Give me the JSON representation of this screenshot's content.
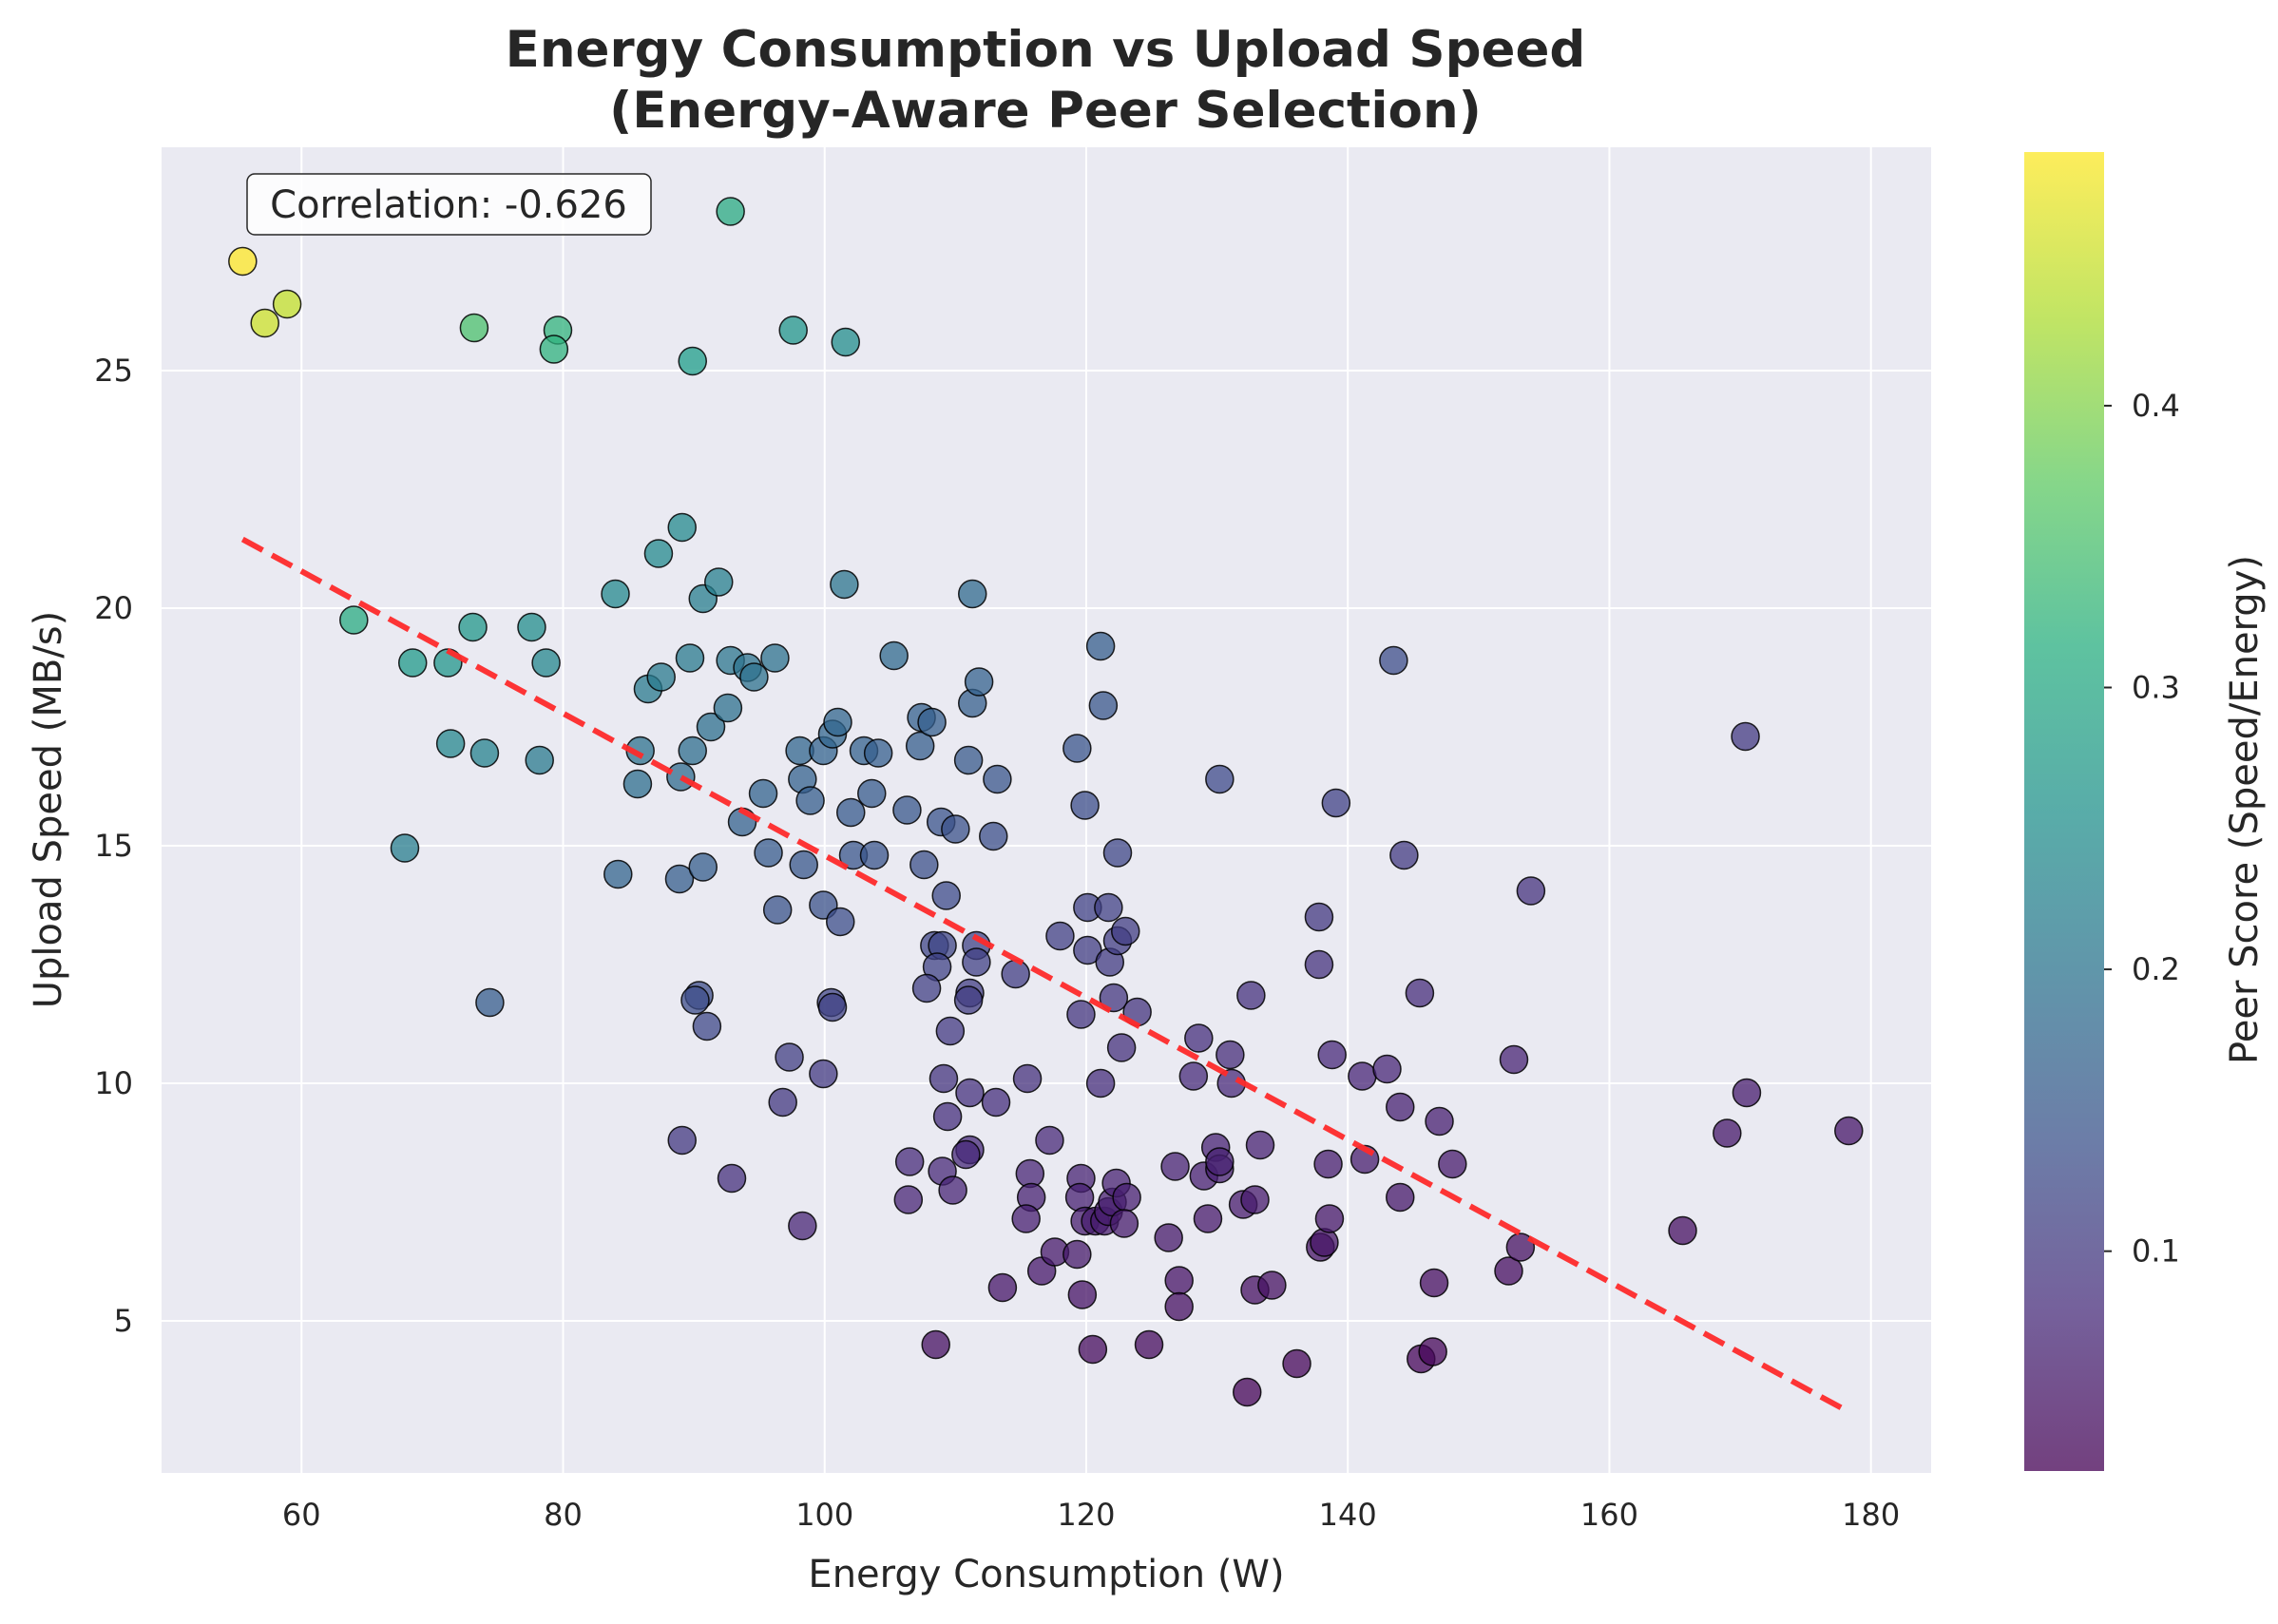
{
  "chart_data": {
    "type": "scatter",
    "title": [
      "Energy Consumption vs Upload Speed",
      "(Energy-Aware Peer Selection)"
    ],
    "xlabel": "Energy Consumption (W)",
    "ylabel": "Upload Speed (MB/s)",
    "xlim": [
      49.3,
      184.6
    ],
    "ylim": [
      1.8,
      29.7
    ],
    "xticks": [
      60,
      80,
      100,
      120,
      140,
      160,
      180
    ],
    "yticks": [
      5,
      10,
      15,
      20,
      25
    ],
    "grid": true,
    "colorbar": {
      "label": "Peer Score (Speed/Energy)",
      "range": [
        0.022,
        0.49
      ],
      "ticks": [
        0.1,
        0.2,
        0.3,
        0.4
      ],
      "tick_labels": [
        "0.1",
        "0.2",
        "0.3",
        "0.4"
      ],
      "colormap": "viridis"
    },
    "annotation": "Correlation: -0.626",
    "trend_line": {
      "x": [
        55.5,
        178.2
      ],
      "y": [
        21.45,
        3.1
      ],
      "color": "#ff2b2b",
      "style": "dashed"
    },
    "points": [
      [
        55.5,
        27.3
      ],
      [
        57.2,
        26.0
      ],
      [
        58.9,
        26.4
      ],
      [
        73.2,
        25.9
      ],
      [
        79.6,
        25.85
      ],
      [
        79.3,
        25.45
      ],
      [
        92.8,
        28.35
      ],
      [
        89.9,
        25.2
      ],
      [
        97.6,
        25.85
      ],
      [
        101.6,
        25.6
      ],
      [
        64.0,
        19.75
      ],
      [
        68.5,
        18.85
      ],
      [
        71.2,
        18.85
      ],
      [
        73.1,
        19.6
      ],
      [
        77.6,
        19.6
      ],
      [
        78.7,
        18.85
      ],
      [
        71.4,
        17.15
      ],
      [
        74.0,
        16.95
      ],
      [
        78.2,
        16.8
      ],
      [
        67.9,
        14.95
      ],
      [
        74.4,
        11.7
      ],
      [
        84.0,
        20.3
      ],
      [
        87.3,
        21.15
      ],
      [
        89.1,
        21.7
      ],
      [
        90.7,
        20.2
      ],
      [
        91.9,
        20.55
      ],
      [
        89.7,
        18.95
      ],
      [
        86.5,
        18.3
      ],
      [
        87.5,
        18.55
      ],
      [
        85.9,
        17.0
      ],
      [
        85.7,
        16.3
      ],
      [
        89.0,
        16.45
      ],
      [
        89.9,
        17.0
      ],
      [
        91.3,
        17.5
      ],
      [
        92.6,
        17.9
      ],
      [
        92.8,
        18.9
      ],
      [
        94.1,
        18.75
      ],
      [
        94.6,
        18.55
      ],
      [
        96.2,
        18.95
      ],
      [
        93.7,
        15.5
      ],
      [
        95.3,
        16.1
      ],
      [
        95.7,
        14.85
      ],
      [
        96.4,
        13.65
      ],
      [
        98.1,
        17.0
      ],
      [
        98.3,
        16.4
      ],
      [
        98.9,
        15.95
      ],
      [
        98.4,
        14.6
      ],
      [
        99.9,
        17.0
      ],
      [
        100.6,
        17.35
      ],
      [
        101.0,
        17.6
      ],
      [
        99.9,
        13.75
      ],
      [
        101.2,
        13.4
      ],
      [
        102.0,
        15.7
      ],
      [
        102.2,
        14.8
      ],
      [
        103.0,
        17.0
      ],
      [
        103.6,
        16.1
      ],
      [
        103.8,
        14.8
      ],
      [
        104.1,
        16.95
      ],
      [
        101.5,
        20.5
      ],
      [
        84.2,
        14.4
      ],
      [
        88.9,
        14.3
      ],
      [
        90.7,
        14.55
      ],
      [
        90.4,
        11.85
      ],
      [
        90.1,
        11.75
      ],
      [
        91.0,
        11.2
      ],
      [
        97.3,
        10.55
      ],
      [
        96.8,
        9.6
      ],
      [
        99.9,
        10.2
      ],
      [
        100.5,
        11.7
      ],
      [
        100.6,
        11.6
      ],
      [
        89.1,
        8.8
      ],
      [
        92.9,
        8.0
      ],
      [
        98.3,
        7.0
      ],
      [
        105.3,
        19.0
      ],
      [
        106.3,
        15.75
      ],
      [
        107.3,
        17.1
      ],
      [
        107.4,
        17.7
      ],
      [
        108.2,
        17.6
      ],
      [
        107.6,
        14.6
      ],
      [
        108.9,
        15.5
      ],
      [
        109.3,
        13.95
      ],
      [
        110.0,
        15.35
      ],
      [
        111.0,
        16.8
      ],
      [
        111.3,
        18.0
      ],
      [
        111.8,
        18.45
      ],
      [
        111.3,
        20.3
      ],
      [
        113.2,
        16.4
      ],
      [
        112.9,
        15.2
      ],
      [
        108.4,
        12.9
      ],
      [
        109.0,
        12.9
      ],
      [
        108.6,
        12.45
      ],
      [
        107.8,
        12.0
      ],
      [
        111.6,
        12.9
      ],
      [
        111.6,
        12.55
      ],
      [
        111.1,
        11.9
      ],
      [
        111.0,
        11.75
      ],
      [
        109.6,
        11.1
      ],
      [
        109.1,
        10.1
      ],
      [
        111.1,
        9.8
      ],
      [
        109.4,
        9.3
      ],
      [
        111.1,
        8.6
      ],
      [
        110.8,
        8.5
      ],
      [
        109.0,
        8.15
      ],
      [
        109.8,
        7.75
      ],
      [
        106.5,
        8.35
      ],
      [
        106.4,
        7.55
      ],
      [
        113.1,
        9.6
      ],
      [
        114.6,
        12.3
      ],
      [
        115.5,
        10.1
      ],
      [
        115.7,
        8.1
      ],
      [
        115.8,
        7.6
      ],
      [
        115.4,
        7.15
      ],
      [
        117.2,
        8.8
      ],
      [
        116.6,
        6.05
      ],
      [
        117.6,
        6.45
      ],
      [
        119.3,
        6.4
      ],
      [
        108.5,
        4.5
      ],
      [
        113.6,
        5.7
      ],
      [
        118.0,
        13.1
      ],
      [
        119.3,
        17.05
      ],
      [
        119.9,
        15.85
      ],
      [
        120.1,
        13.7
      ],
      [
        120.1,
        12.8
      ],
      [
        119.6,
        11.45
      ],
      [
        121.1,
        19.2
      ],
      [
        121.3,
        17.95
      ],
      [
        121.7,
        13.7
      ],
      [
        121.8,
        12.55
      ],
      [
        122.1,
        11.8
      ],
      [
        122.4,
        13.0
      ],
      [
        122.4,
        14.85
      ],
      [
        123.0,
        13.2
      ],
      [
        122.7,
        10.75
      ],
      [
        123.9,
        11.5
      ],
      [
        121.1,
        10.0
      ],
      [
        119.6,
        8.0
      ],
      [
        119.5,
        7.6
      ],
      [
        119.9,
        7.1
      ],
      [
        120.7,
        7.1
      ],
      [
        121.4,
        7.1
      ],
      [
        121.7,
        7.3
      ],
      [
        122.0,
        7.5
      ],
      [
        122.3,
        7.9
      ],
      [
        123.1,
        7.6
      ],
      [
        122.9,
        7.05
      ],
      [
        119.7,
        5.55
      ],
      [
        120.5,
        4.4
      ],
      [
        124.8,
        4.5
      ],
      [
        126.3,
        6.75
      ],
      [
        126.8,
        8.25
      ],
      [
        127.1,
        5.85
      ],
      [
        127.1,
        5.3
      ],
      [
        128.6,
        10.95
      ],
      [
        128.2,
        10.15
      ],
      [
        129.0,
        8.05
      ],
      [
        129.3,
        7.15
      ],
      [
        129.9,
        8.65
      ],
      [
        130.2,
        8.2
      ],
      [
        130.2,
        8.35
      ],
      [
        130.2,
        16.4
      ],
      [
        131.0,
        10.6
      ],
      [
        131.1,
        10.0
      ],
      [
        132.0,
        7.45
      ],
      [
        132.6,
        11.85
      ],
      [
        132.9,
        7.55
      ],
      [
        132.9,
        5.65
      ],
      [
        133.3,
        8.7
      ],
      [
        134.2,
        5.75
      ],
      [
        132.3,
        3.5
      ],
      [
        136.1,
        4.1
      ],
      [
        137.8,
        13.5
      ],
      [
        137.8,
        12.5
      ],
      [
        137.9,
        6.55
      ],
      [
        138.2,
        6.65
      ],
      [
        138.5,
        8.3
      ],
      [
        138.6,
        7.15
      ],
      [
        138.8,
        10.6
      ],
      [
        139.1,
        15.9
      ],
      [
        141.1,
        10.15
      ],
      [
        141.3,
        8.4
      ],
      [
        143.0,
        10.3
      ],
      [
        143.5,
        18.9
      ],
      [
        144.0,
        9.5
      ],
      [
        144.0,
        7.6
      ],
      [
        144.3,
        14.8
      ],
      [
        145.5,
        11.9
      ],
      [
        145.6,
        4.2
      ],
      [
        146.5,
        4.35
      ],
      [
        146.6,
        5.8
      ],
      [
        147.0,
        9.2
      ],
      [
        148.0,
        8.3
      ],
      [
        152.3,
        6.05
      ],
      [
        152.7,
        10.5
      ],
      [
        153.2,
        6.55
      ],
      [
        154.0,
        14.05
      ],
      [
        165.6,
        6.9
      ],
      [
        169.0,
        8.95
      ],
      [
        170.4,
        17.3
      ],
      [
        170.5,
        9.8
      ],
      [
        178.3,
        9.0
      ]
    ]
  }
}
